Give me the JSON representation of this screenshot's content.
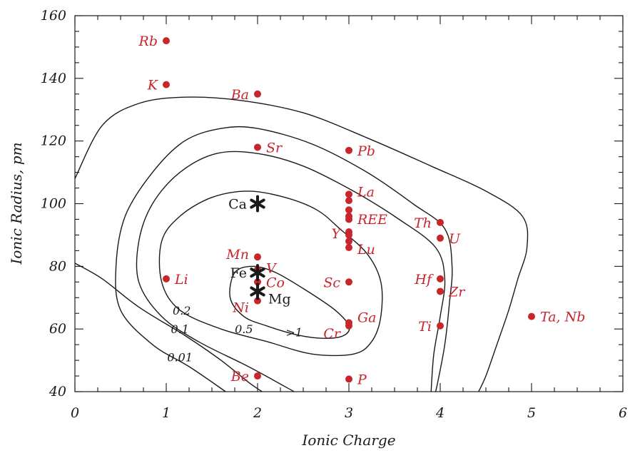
{
  "chart_data": {
    "type": "scatter",
    "xlabel": "Ionic Charge",
    "ylabel": "Ionic Radius, pm",
    "xlim": [
      0,
      6
    ],
    "ylim": [
      40,
      160
    ],
    "x_ticks": [
      "0",
      "1",
      "2",
      "3",
      "4",
      "5",
      "6"
    ],
    "y_ticks": [
      "40",
      "60",
      "80",
      "100",
      "120",
      "140",
      "160"
    ],
    "grid": false,
    "point_color": "#c8252c",
    "host_color": "#1a1a1a",
    "elements": [
      {
        "label": "Rb",
        "x": 1,
        "y": 152
      },
      {
        "label": "K",
        "x": 1,
        "y": 138
      },
      {
        "label": "Li",
        "x": 1,
        "y": 76
      },
      {
        "label": "Ba",
        "x": 2,
        "y": 135
      },
      {
        "label": "Sr",
        "x": 2,
        "y": 118
      },
      {
        "label": "Mn",
        "x": 2,
        "y": 83
      },
      {
        "label": "V",
        "x": 2,
        "y": 79
      },
      {
        "label": "Co",
        "x": 2,
        "y": 75
      },
      {
        "label": "Ni",
        "x": 2,
        "y": 69
      },
      {
        "label": "Be",
        "x": 2,
        "y": 45
      },
      {
        "label": "Pb",
        "x": 3,
        "y": 117
      },
      {
        "label": "La",
        "x": 3,
        "y": 103
      },
      {
        "label": "",
        "x": 3,
        "y": 101
      },
      {
        "label": "",
        "x": 3,
        "y": 98
      },
      {
        "label": "REE",
        "x": 3,
        "y": 96
      },
      {
        "label": "",
        "x": 3,
        "y": 95
      },
      {
        "label": "Y",
        "x": 3,
        "y": 91
      },
      {
        "label": "",
        "x": 3,
        "y": 90
      },
      {
        "label": "",
        "x": 3,
        "y": 88
      },
      {
        "label": "Lu",
        "x": 3,
        "y": 86
      },
      {
        "label": "Sc",
        "x": 3,
        "y": 75
      },
      {
        "label": "Ga",
        "x": 3,
        "y": 62
      },
      {
        "label": "Cr",
        "x": 3,
        "y": 61
      },
      {
        "label": "P",
        "x": 3,
        "y": 44
      },
      {
        "label": "Th",
        "x": 4,
        "y": 94
      },
      {
        "label": "U",
        "x": 4,
        "y": 89
      },
      {
        "label": "Hf",
        "x": 4,
        "y": 76
      },
      {
        "label": "Zr",
        "x": 4,
        "y": 72
      },
      {
        "label": "Ti",
        "x": 4,
        "y": 61
      },
      {
        "label": "Ta, Nb",
        "x": 5,
        "y": 64
      }
    ],
    "host_ions": [
      {
        "label": "Ca",
        "x": 2,
        "y": 100
      },
      {
        "label": "Fe",
        "x": 2,
        "y": 78
      },
      {
        "label": "Mg",
        "x": 2,
        "y": 72
      }
    ],
    "contour_labels": [
      {
        "label": "0.01",
        "x": 1.15,
        "y": 51
      },
      {
        "label": "0.1",
        "x": 1.15,
        "y": 60
      },
      {
        "label": "0.2",
        "x": 1.17,
        "y": 66
      },
      {
        "label": "0.5",
        "x": 1.85,
        "y": 60
      },
      {
        "label": ">1",
        "x": 2.4,
        "y": 59
      }
    ],
    "contours": [
      {
        "level": "0.01",
        "points": [
          [
            0,
            108
          ],
          [
            0.3,
            125
          ],
          [
            0.7,
            132
          ],
          [
            1.2,
            134
          ],
          [
            1.8,
            133
          ],
          [
            2.5,
            129
          ],
          [
            3.2,
            121
          ],
          [
            3.9,
            112
          ],
          [
            4.5,
            104
          ],
          [
            4.9,
            96
          ],
          [
            4.95,
            86
          ],
          [
            4.85,
            76
          ],
          [
            4.75,
            66
          ],
          [
            4.62,
            55
          ],
          [
            4.5,
            45
          ],
          [
            4.42,
            40
          ]
        ],
        "closed": false
      },
      {
        "level": "0.01-lower",
        "points": [
          [
            0,
            81
          ],
          [
            0.3,
            76
          ],
          [
            0.7,
            67
          ],
          [
            1.2,
            58
          ],
          [
            1.6,
            50
          ],
          [
            1.9,
            43
          ],
          [
            2.05,
            40
          ]
        ],
        "closed": false
      },
      {
        "level": "0.1",
        "points": [
          [
            1.65,
            40
          ],
          [
            1.25,
            48
          ],
          [
            0.85,
            55
          ],
          [
            0.5,
            66
          ],
          [
            0.45,
            80
          ],
          [
            0.55,
            96
          ],
          [
            0.85,
            110
          ],
          [
            1.2,
            120
          ],
          [
            1.6,
            124
          ],
          [
            2.0,
            124
          ],
          [
            2.6,
            119
          ],
          [
            3.2,
            110
          ],
          [
            3.7,
            100
          ],
          [
            4.05,
            92
          ],
          [
            4.13,
            80
          ],
          [
            4.1,
            68
          ],
          [
            4.05,
            55
          ],
          [
            3.98,
            44
          ],
          [
            3.95,
            40
          ]
        ],
        "closed": false
      },
      {
        "level": "0.2",
        "points": [
          [
            2.4,
            40
          ],
          [
            1.9,
            48
          ],
          [
            1.35,
            56
          ],
          [
            0.95,
            64
          ],
          [
            0.7,
            75
          ],
          [
            0.7,
            88
          ],
          [
            0.85,
            100
          ],
          [
            1.15,
            110
          ],
          [
            1.55,
            116
          ],
          [
            2.0,
            116
          ],
          [
            2.5,
            112
          ],
          [
            3.05,
            104
          ],
          [
            3.55,
            95
          ],
          [
            3.95,
            86
          ],
          [
            4.05,
            76
          ],
          [
            4.0,
            64
          ],
          [
            3.93,
            52
          ],
          [
            3.9,
            40
          ]
        ],
        "closed": false
      },
      {
        "level": "0.5",
        "points": [
          [
            2.6,
            52
          ],
          [
            2.1,
            56
          ],
          [
            1.6,
            60
          ],
          [
            1.15,
            66
          ],
          [
            0.95,
            75
          ],
          [
            0.95,
            88
          ],
          [
            1.15,
            96
          ],
          [
            1.5,
            102
          ],
          [
            1.9,
            104
          ],
          [
            2.3,
            102
          ],
          [
            2.65,
            98
          ],
          [
            2.9,
            92
          ],
          [
            3.2,
            84
          ],
          [
            3.35,
            75
          ],
          [
            3.35,
            64
          ],
          [
            3.25,
            56
          ],
          [
            3.05,
            52
          ],
          [
            2.6,
            52
          ]
        ],
        "closed": true
      },
      {
        "level": ">1",
        "points": [
          [
            1.7,
            70
          ],
          [
            1.75,
            78
          ],
          [
            1.95,
            80
          ],
          [
            2.2,
            78
          ],
          [
            2.55,
            72
          ],
          [
            2.85,
            66
          ],
          [
            3.0,
            61
          ],
          [
            2.95,
            58
          ],
          [
            2.75,
            57
          ],
          [
            2.45,
            58
          ],
          [
            2.1,
            61
          ],
          [
            1.85,
            64
          ],
          [
            1.7,
            70
          ]
        ],
        "closed": true
      }
    ]
  }
}
